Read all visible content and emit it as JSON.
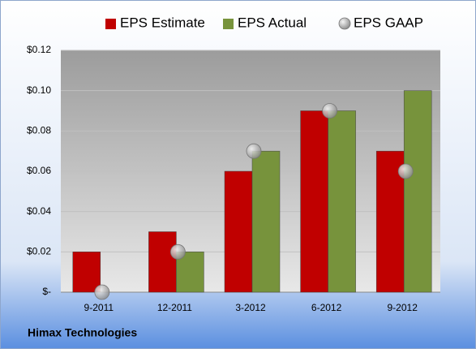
{
  "chart_data": {
    "type": "bar",
    "categories": [
      "9-2011",
      "12-2011",
      "3-2012",
      "6-2012",
      "9-2012"
    ],
    "series": [
      {
        "name": "EPS Estimate",
        "color": "#c00000",
        "values": [
          0.02,
          0.03,
          0.06,
          0.09,
          0.07
        ]
      },
      {
        "name": "EPS Actual",
        "color": "#77933c",
        "values": [
          null,
          0.02,
          0.07,
          0.09,
          0.1
        ]
      },
      {
        "name": "EPS GAAP",
        "color": "#a6a6a6",
        "type": "scatter",
        "values": [
          0,
          0.02,
          0.07,
          0.09,
          0.06
        ]
      }
    ],
    "ylim": [
      0,
      0.12
    ],
    "yticks": [
      {
        "value": 0,
        "label": "$-"
      },
      {
        "value": 0.02,
        "label": "$0.02"
      },
      {
        "value": 0.04,
        "label": "$0.04"
      },
      {
        "value": 0.06,
        "label": "$0.06"
      },
      {
        "value": 0.08,
        "label": "$0.08"
      },
      {
        "value": 0.1,
        "label": "$0.10"
      },
      {
        "value": 0.12,
        "label": "$0.12"
      }
    ],
    "grid": true,
    "legend": "top",
    "footer": "Himax Technologies"
  }
}
